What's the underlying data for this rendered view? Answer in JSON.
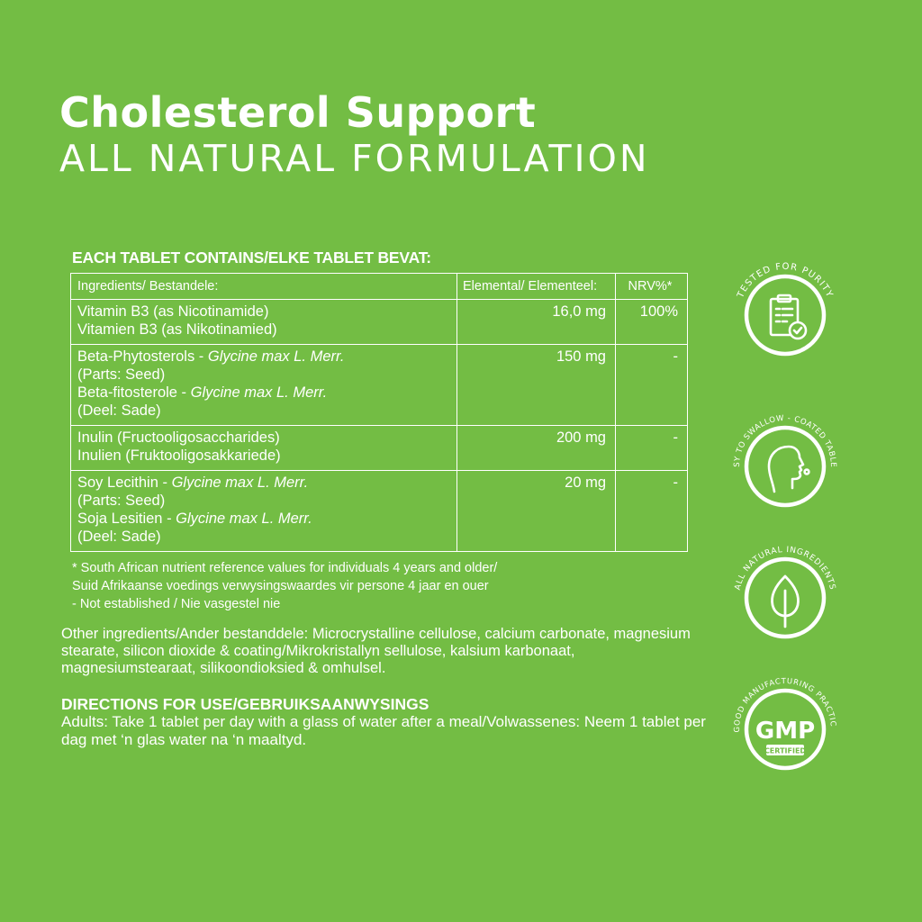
{
  "header": {
    "title": "Cholesterol Support",
    "subtitle": "ALL NATURAL FORMULATION"
  },
  "panel": {
    "contains": "EACH TABLET CONTAINS/ELKE TABLET BEVAT:",
    "columns": {
      "ingredients": "Ingredients/ Bestandele:",
      "elemental": "Elemental/ Elementeel:",
      "nrv": "NRV%*"
    },
    "rows": [
      {
        "en": "Vitamin B3 (as Nicotinamide)",
        "af": "Vitamien B3 (as Nikotinamied)",
        "amount": "16,0 mg",
        "nrv": "100%"
      },
      {
        "en_name": "Beta-Phytosterols - ",
        "en_latin": "Glycine max L. Merr.",
        "en_parts": "(Parts: Seed)",
        "af_name": "Beta-fitosterole - ",
        "af_latin": "Glycine max L. Merr.",
        "af_parts": "(Deel: Sade)",
        "amount": "150 mg",
        "nrv": "-"
      },
      {
        "en": "Inulin (Fructooligosaccharides)",
        "af": "Inulien (Fruktooligosakkariede)",
        "amount": "200 mg",
        "nrv": "-"
      },
      {
        "en_name": "Soy Lecithin - ",
        "en_latin": "Glycine max L. Merr.",
        "en_parts": "(Parts: Seed)",
        "af_name": "Soja Lesitien - ",
        "af_latin": "Glycine max L. Merr.",
        "af_parts": "(Deel: Sade)",
        "amount": "20 mg",
        "nrv": "-"
      }
    ],
    "notes": [
      "* South African nutrient reference values for individuals 4 years and older/",
      "Suid Afrikaanse voedings verwysingswaardes vir persone 4 jaar en ouer",
      "-  Not established / Nie vasgestel nie"
    ],
    "other_ingredients": "Other ingredients/Ander bestanddele: Microcrystalline cellulose, calcium carbonate, magnesium stearate, silicon dioxide & coating/Mikrokristallyn sellulose, kalsium karbonaat, magnesiumstearaat, silikoondioksied & omhulsel.",
    "directions_heading": "DIRECTIONS FOR USE/GEBRUIKSAANWYSINGS",
    "directions_text": "Adults: Take 1 tablet per day with a glass of water after a meal/Volwassenes: Neem 1 tablet per dag met ‘n glas water na ‘n maaltyd."
  },
  "badges": [
    {
      "label": "TESTED FOR PURITY",
      "icon": "clipboard-check-icon"
    },
    {
      "label": "EASY TO SWALLOW - COATED TABLETS",
      "icon": "face-profile-icon"
    },
    {
      "label": "ALL NATURAL INGREDIENTS",
      "icon": "leaf-icon"
    },
    {
      "label": "GOOD MANUFACTURING PRACTICE",
      "icon": "gmp-certified-icon",
      "gmp": "GMP",
      "certified": "CERTIFIED"
    }
  ],
  "colors": {
    "background": "#73bd44",
    "foreground": "#ffffff"
  }
}
